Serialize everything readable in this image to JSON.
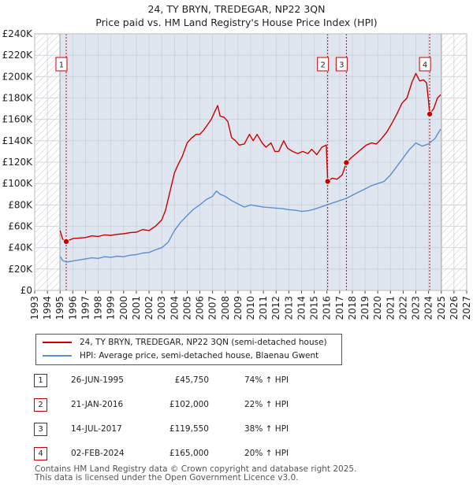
{
  "header": {
    "title_line1": "24, TY BRYN, TREDEGAR, NP22 3QN",
    "title_line2": "Price paid vs. HM Land Registry's House Price Index (HPI)"
  },
  "colors": {
    "property": "#cc0000",
    "hpi": "#5b8fd0",
    "shade": "#dfe6f0",
    "hatch": "#c9c9c9",
    "grid": "#c9d0d8",
    "dashed": "#cc0000"
  },
  "legend": {
    "property_label": "24, TY BRYN, TREDEGAR, NP22 3QN (semi-detached house)",
    "hpi_label": "HPI: Average price, semi-detached house, Blaenau Gwent"
  },
  "sales": [
    {
      "num": "1",
      "date": "26-JUN-1995",
      "price": "£45,750",
      "hpi": "74% ↑ HPI"
    },
    {
      "num": "2",
      "date": "21-JAN-2016",
      "price": "£102,000",
      "hpi": "22% ↑ HPI"
    },
    {
      "num": "3",
      "date": "14-JUL-2017",
      "price": "£119,550",
      "hpi": "38% ↑ HPI"
    },
    {
      "num": "4",
      "date": "02-FEB-2024",
      "price": "£165,000",
      "hpi": "20% ↑ HPI"
    }
  ],
  "footer": {
    "line1": "Contains HM Land Registry data © Crown copyright and database right 2025.",
    "line2": "This data is licensed under the Open Government Licence v3.0."
  },
  "chart_data": {
    "type": "line",
    "title": "24, TY BRYN, TREDEGAR, NP22 3QN",
    "subtitle": "Price paid vs. HM Land Registry's House Price Index (HPI)",
    "xlabel": "",
    "ylabel": "",
    "xlim": [
      1993,
      2027
    ],
    "ylim": [
      0,
      240000
    ],
    "x_ticks": [
      1993,
      1994,
      1995,
      1996,
      1997,
      1998,
      1999,
      2000,
      2001,
      2002,
      2003,
      2004,
      2005,
      2006,
      2007,
      2008,
      2009,
      2010,
      2011,
      2012,
      2013,
      2014,
      2015,
      2016,
      2017,
      2018,
      2019,
      2020,
      2021,
      2022,
      2023,
      2024,
      2025,
      2026,
      2027
    ],
    "y_ticks": [
      0,
      20000,
      40000,
      60000,
      80000,
      100000,
      120000,
      140000,
      160000,
      180000,
      200000,
      220000,
      240000
    ],
    "y_tick_labels": [
      "£0",
      "£20K",
      "£40K",
      "£60K",
      "£80K",
      "£100K",
      "£120K",
      "£140K",
      "£160K",
      "£180K",
      "£200K",
      "£220K",
      "£240K"
    ],
    "shaded_ranges": [
      [
        1993,
        1995.0
      ],
      [
        2025.0,
        2027
      ]
    ],
    "data_range": [
      1995.0,
      2025.0
    ],
    "grid": true,
    "series": [
      {
        "name": "24, TY BRYN, TREDEGAR, NP22 3QN (semi-detached house)",
        "color": "#cc0000",
        "points": [
          [
            1995.0,
            56000
          ],
          [
            1995.2,
            48000
          ],
          [
            1995.48,
            45750
          ],
          [
            1995.7,
            47000
          ],
          [
            1996.0,
            48500
          ],
          [
            1996.5,
            49000
          ],
          [
            1997.0,
            49500
          ],
          [
            1997.5,
            51000
          ],
          [
            1998.0,
            50500
          ],
          [
            1998.5,
            52000
          ],
          [
            1999.0,
            51500
          ],
          [
            1999.5,
            52500
          ],
          [
            2000.0,
            53000
          ],
          [
            2000.5,
            54000
          ],
          [
            2001.0,
            54500
          ],
          [
            2001.5,
            57000
          ],
          [
            2002.0,
            56000
          ],
          [
            2002.5,
            60000
          ],
          [
            2003.0,
            66000
          ],
          [
            2003.3,
            75000
          ],
          [
            2003.6,
            90000
          ],
          [
            2004.0,
            110000
          ],
          [
            2004.3,
            118000
          ],
          [
            2004.6,
            125000
          ],
          [
            2005.0,
            138000
          ],
          [
            2005.3,
            142000
          ],
          [
            2005.7,
            146000
          ],
          [
            2006.0,
            146000
          ],
          [
            2006.3,
            150000
          ],
          [
            2006.6,
            155000
          ],
          [
            2006.9,
            160000
          ],
          [
            2007.2,
            168000
          ],
          [
            2007.4,
            173000
          ],
          [
            2007.6,
            163000
          ],
          [
            2007.9,
            162000
          ],
          [
            2008.2,
            158000
          ],
          [
            2008.5,
            143000
          ],
          [
            2008.8,
            140000
          ],
          [
            2009.1,
            136000
          ],
          [
            2009.5,
            137000
          ],
          [
            2009.9,
            146000
          ],
          [
            2010.2,
            140000
          ],
          [
            2010.5,
            146000
          ],
          [
            2010.9,
            138000
          ],
          [
            2011.2,
            134000
          ],
          [
            2011.6,
            138000
          ],
          [
            2011.9,
            130000
          ],
          [
            2012.2,
            130000
          ],
          [
            2012.6,
            140000
          ],
          [
            2012.9,
            133000
          ],
          [
            2013.3,
            130000
          ],
          [
            2013.7,
            128000
          ],
          [
            2014.1,
            130000
          ],
          [
            2014.5,
            128000
          ],
          [
            2014.8,
            132000
          ],
          [
            2015.2,
            127000
          ],
          [
            2015.6,
            134000
          ],
          [
            2015.95,
            136000
          ],
          [
            2016.06,
            102000
          ],
          [
            2016.4,
            105000
          ],
          [
            2016.8,
            104000
          ],
          [
            2017.2,
            108000
          ],
          [
            2017.53,
            119550
          ],
          [
            2017.9,
            124000
          ],
          [
            2018.3,
            128000
          ],
          [
            2018.7,
            132000
          ],
          [
            2019.1,
            136000
          ],
          [
            2019.5,
            138000
          ],
          [
            2019.9,
            137000
          ],
          [
            2020.3,
            142000
          ],
          [
            2020.7,
            148000
          ],
          [
            2021.1,
            156000
          ],
          [
            2021.5,
            165000
          ],
          [
            2021.9,
            175000
          ],
          [
            2022.3,
            180000
          ],
          [
            2022.7,
            195000
          ],
          [
            2023.0,
            203000
          ],
          [
            2023.3,
            196000
          ],
          [
            2023.6,
            197000
          ],
          [
            2023.85,
            194000
          ],
          [
            2024.0,
            177000
          ],
          [
            2024.09,
            165000
          ],
          [
            2024.4,
            170000
          ],
          [
            2024.7,
            180000
          ],
          [
            2024.95,
            183000
          ]
        ]
      },
      {
        "name": "HPI: Average price, semi-detached house, Blaenau Gwent",
        "color": "#5b8fd0",
        "points": [
          [
            1995.0,
            32000
          ],
          [
            1995.2,
            28000
          ],
          [
            1995.5,
            26500
          ],
          [
            1996.0,
            27500
          ],
          [
            1996.5,
            28500
          ],
          [
            1997.0,
            29500
          ],
          [
            1997.5,
            30500
          ],
          [
            1998.0,
            30000
          ],
          [
            1998.5,
            31500
          ],
          [
            1999.0,
            31000
          ],
          [
            1999.5,
            32000
          ],
          [
            2000.0,
            31500
          ],
          [
            2000.5,
            33000
          ],
          [
            2001.0,
            33500
          ],
          [
            2001.5,
            35000
          ],
          [
            2002.0,
            35500
          ],
          [
            2002.5,
            38000
          ],
          [
            2003.0,
            40000
          ],
          [
            2003.5,
            45000
          ],
          [
            2004.0,
            56000
          ],
          [
            2004.5,
            64000
          ],
          [
            2005.0,
            70000
          ],
          [
            2005.5,
            76000
          ],
          [
            2006.0,
            80000
          ],
          [
            2006.5,
            85000
          ],
          [
            2007.0,
            88000
          ],
          [
            2007.3,
            93000
          ],
          [
            2007.6,
            90000
          ],
          [
            2008.0,
            88000
          ],
          [
            2008.5,
            84000
          ],
          [
            2009.0,
            81000
          ],
          [
            2009.5,
            78000
          ],
          [
            2010.0,
            80000
          ],
          [
            2010.5,
            79000
          ],
          [
            2011.0,
            78000
          ],
          [
            2011.5,
            77500
          ],
          [
            2012.0,
            77000
          ],
          [
            2012.5,
            76500
          ],
          [
            2013.0,
            75500
          ],
          [
            2013.5,
            75000
          ],
          [
            2014.0,
            74000
          ],
          [
            2014.5,
            74500
          ],
          [
            2015.0,
            76000
          ],
          [
            2015.5,
            78000
          ],
          [
            2016.0,
            80000
          ],
          [
            2016.5,
            82000
          ],
          [
            2017.0,
            84000
          ],
          [
            2017.5,
            86000
          ],
          [
            2018.0,
            89000
          ],
          [
            2018.5,
            92000
          ],
          [
            2019.0,
            95000
          ],
          [
            2019.5,
            98000
          ],
          [
            2020.0,
            100000
          ],
          [
            2020.5,
            102000
          ],
          [
            2021.0,
            108000
          ],
          [
            2021.5,
            116000
          ],
          [
            2022.0,
            124000
          ],
          [
            2022.5,
            132000
          ],
          [
            2023.0,
            138000
          ],
          [
            2023.5,
            135000
          ],
          [
            2024.0,
            137000
          ],
          [
            2024.5,
            142000
          ],
          [
            2024.95,
            151000
          ]
        ]
      }
    ],
    "sale_markers": [
      {
        "label": "1",
        "x": 1995.48,
        "y": 45750
      },
      {
        "label": "2",
        "x": 2016.06,
        "y": 102000
      },
      {
        "label": "3",
        "x": 2017.53,
        "y": 119550
      },
      {
        "label": "4",
        "x": 2024.09,
        "y": 165000
      }
    ]
  }
}
